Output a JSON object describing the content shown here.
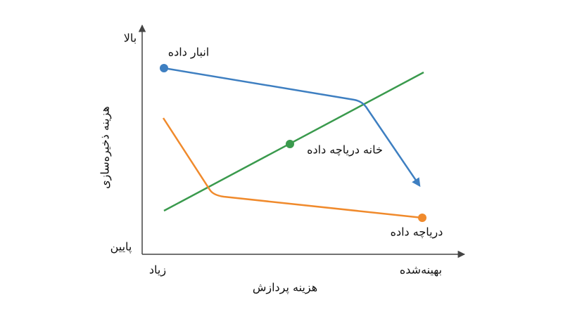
{
  "axes": {
    "y_top": "بالا",
    "y_bottom": "پایین",
    "y_title": "هزینه ذخیره‌سازی",
    "x_left": "زیاد",
    "x_right": "بهینه‌شده",
    "x_title": "هزینه پردازش"
  },
  "curves": {
    "warehouse": "انبار داده",
    "lakehouse": "خانه دریاچه داده",
    "lake": "دریاچه داده"
  }
}
